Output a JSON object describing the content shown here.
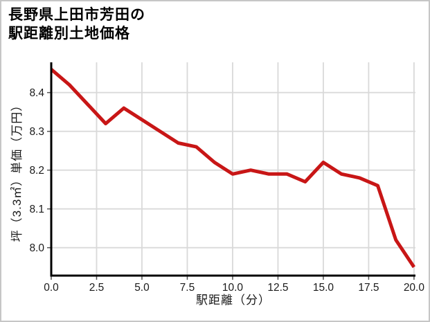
{
  "chart_data": {
    "type": "line",
    "title": "長野県上田市芳田の駅距離別土地価格",
    "title_lines": [
      "長野県上田市芳田の",
      "駅距離別土地価格"
    ],
    "xlabel": "駅距離（分）",
    "ylabel": "坪（3.3㎡）単価（万円）",
    "x": [
      0,
      1,
      2,
      3,
      4,
      5,
      6,
      7,
      8,
      9,
      10,
      11,
      12,
      13,
      14,
      15,
      16,
      17,
      18,
      19,
      20
    ],
    "y": [
      8.46,
      8.42,
      8.37,
      8.32,
      8.36,
      8.33,
      8.3,
      8.27,
      8.26,
      8.22,
      8.19,
      8.2,
      8.19,
      8.19,
      8.17,
      8.22,
      8.19,
      8.18,
      8.16,
      8.02,
      7.95
    ],
    "xticks": [
      0,
      2.5,
      5,
      7.5,
      10,
      12.5,
      15,
      17.5,
      20
    ],
    "xtick_labels": [
      "0.0",
      "2.5",
      "5.0",
      "7.5",
      "10.0",
      "12.5",
      "15.0",
      "17.5",
      "20.0"
    ],
    "yticks": [
      8.0,
      8.1,
      8.2,
      8.3,
      8.4
    ],
    "ytick_labels": [
      "8.0",
      "8.1",
      "8.2",
      "8.3",
      "8.4"
    ],
    "xlim": [
      0,
      20.08
    ],
    "ylim": [
      7.928,
      8.478
    ],
    "grid": true,
    "legend": false,
    "colors": {
      "line": "#c81616",
      "grid": "#d9d9d9",
      "spine": "#000000",
      "tick": "#555555",
      "tick_text": "#1a1a1a",
      "frame_border": "#c6c6c6",
      "background": "#ffffff"
    }
  }
}
